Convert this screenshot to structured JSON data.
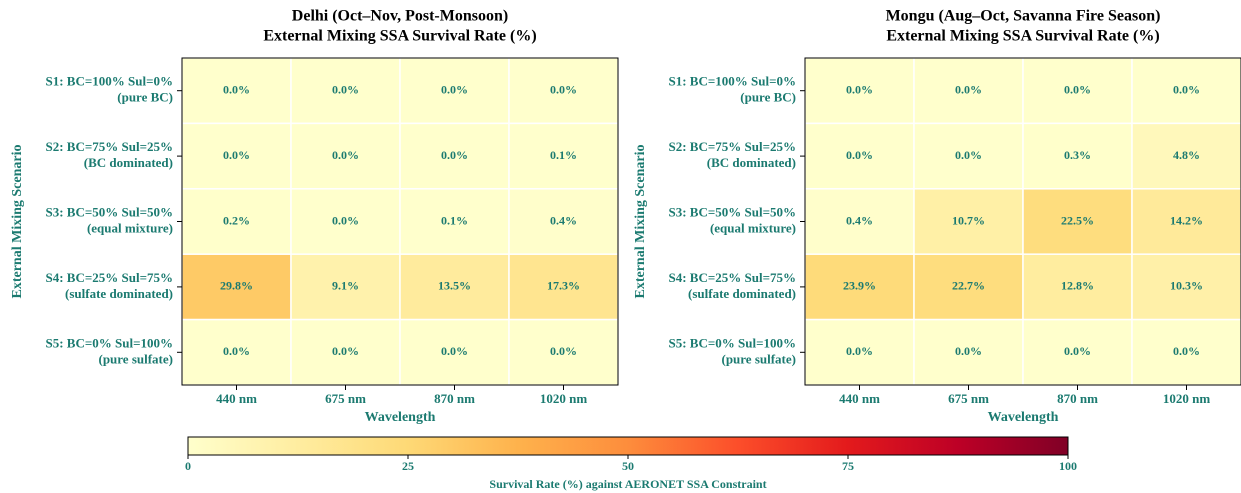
{
  "chart_data": [
    {
      "type": "heatmap",
      "title": [
        "Delhi (Oct–Nov, Post-Monsoon)",
        "External Mixing SSA Survival Rate (%)"
      ],
      "x_label": "Wavelength",
      "y_label": "External Mixing Scenario",
      "x_categories": [
        "440 nm",
        "675 nm",
        "870 nm",
        "1020 nm"
      ],
      "y_categories": [
        [
          "S1: BC=100% Sul=0%",
          "(pure BC)"
        ],
        [
          "S2: BC=75%  Sul=25%",
          "(BC dominated)"
        ],
        [
          "S3: BC=50%  Sul=50%",
          "(equal mixture)"
        ],
        [
          "S4: BC=25%  Sul=75%",
          "(sulfate dominated)"
        ],
        [
          "S5: BC=0%   Sul=100%",
          "(pure sulfate)"
        ]
      ],
      "values": [
        [
          0.0,
          0.0,
          0.0,
          0.0
        ],
        [
          0.0,
          0.0,
          0.0,
          0.1
        ],
        [
          0.2,
          0.0,
          0.1,
          0.4
        ],
        [
          29.8,
          9.1,
          13.5,
          17.3
        ],
        [
          0.0,
          0.0,
          0.0,
          0.0
        ]
      ],
      "value_labels": [
        [
          "0.0%",
          "0.0%",
          "0.0%",
          "0.0%"
        ],
        [
          "0.0%",
          "0.0%",
          "0.0%",
          "0.1%"
        ],
        [
          "0.2%",
          "0.0%",
          "0.1%",
          "0.4%"
        ],
        [
          "29.8%",
          "9.1%",
          "13.5%",
          "17.3%"
        ],
        [
          "0.0%",
          "0.0%",
          "0.0%",
          "0.0%"
        ]
      ]
    },
    {
      "type": "heatmap",
      "title": [
        "Mongu (Aug–Oct, Savanna Fire Season)",
        "External Mixing SSA Survival Rate (%)"
      ],
      "x_label": "Wavelength",
      "y_label": "External Mixing Scenario",
      "x_categories": [
        "440 nm",
        "675 nm",
        "870 nm",
        "1020 nm"
      ],
      "y_categories": [
        [
          "S1: BC=100% Sul=0%",
          "(pure BC)"
        ],
        [
          "S2: BC=75%  Sul=25%",
          "(BC dominated)"
        ],
        [
          "S3: BC=50%  Sul=50%",
          "(equal mixture)"
        ],
        [
          "S4: BC=25%  Sul=75%",
          "(sulfate dominated)"
        ],
        [
          "S5: BC=0%   Sul=100%",
          "(pure sulfate)"
        ]
      ],
      "values": [
        [
          0.0,
          0.0,
          0.0,
          0.0
        ],
        [
          0.0,
          0.0,
          0.3,
          4.8
        ],
        [
          0.4,
          10.7,
          22.5,
          14.2
        ],
        [
          23.9,
          22.7,
          12.8,
          10.3
        ],
        [
          0.0,
          0.0,
          0.0,
          0.0
        ]
      ],
      "value_labels": [
        [
          "0.0%",
          "0.0%",
          "0.0%",
          "0.0%"
        ],
        [
          "0.0%",
          "0.0%",
          "0.3%",
          "4.8%"
        ],
        [
          "0.4%",
          "10.7%",
          "22.5%",
          "14.2%"
        ],
        [
          "23.9%",
          "22.7%",
          "12.8%",
          "10.3%"
        ],
        [
          "0.0%",
          "0.0%",
          "0.0%",
          "0.0%"
        ]
      ]
    },
    {
      "type": "colorbar",
      "colormap": "YlOrRd",
      "clim": [
        0,
        100
      ],
      "ticks": [
        0,
        25,
        50,
        75,
        100
      ],
      "label": "Survival Rate (%) against AERONET SSA Constraint"
    }
  ]
}
